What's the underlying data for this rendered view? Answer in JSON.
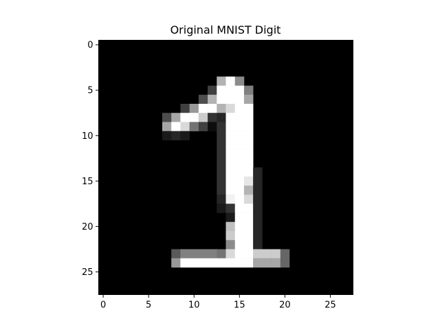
{
  "chart_data": {
    "type": "heatmap",
    "title": "Original MNIST Digit",
    "xlabel": "",
    "ylabel": "",
    "colormap": "gray",
    "rows": 28,
    "cols": 28,
    "xlim": [
      -0.5,
      27.5
    ],
    "ylim": [
      27.5,
      -0.5
    ],
    "xticks": [
      0,
      5,
      10,
      15,
      20,
      25
    ],
    "yticks": [
      0,
      5,
      10,
      15,
      20,
      25
    ],
    "grid": false,
    "vmin": 0,
    "vmax": 1,
    "pixels": [
      [
        4,
        13,
        0.7
      ],
      [
        4,
        14,
        1.0
      ],
      [
        4,
        15,
        0.55
      ],
      [
        5,
        12,
        0.25
      ],
      [
        5,
        13,
        1.0
      ],
      [
        5,
        14,
        1.0
      ],
      [
        5,
        15,
        1.0
      ],
      [
        5,
        16,
        0.5
      ],
      [
        6,
        11,
        0.3
      ],
      [
        6,
        12,
        0.7
      ],
      [
        6,
        13,
        1.0
      ],
      [
        6,
        14,
        1.0
      ],
      [
        6,
        15,
        1.0
      ],
      [
        6,
        16,
        0.65
      ],
      [
        7,
        9,
        0.25
      ],
      [
        7,
        10,
        0.6
      ],
      [
        7,
        11,
        1.0
      ],
      [
        7,
        12,
        1.0
      ],
      [
        7,
        13,
        0.7
      ],
      [
        7,
        14,
        0.85
      ],
      [
        7,
        15,
        1.0
      ],
      [
        7,
        16,
        1.0
      ],
      [
        8,
        7,
        0.3
      ],
      [
        8,
        8,
        0.65
      ],
      [
        8,
        9,
        1.0
      ],
      [
        8,
        10,
        1.0
      ],
      [
        8,
        11,
        0.8
      ],
      [
        8,
        12,
        0.2
      ],
      [
        8,
        13,
        0.15
      ],
      [
        8,
        14,
        1.0
      ],
      [
        8,
        15,
        1.0
      ],
      [
        8,
        16,
        1.0
      ],
      [
        9,
        7,
        0.65
      ],
      [
        9,
        8,
        1.0
      ],
      [
        9,
        9,
        0.85
      ],
      [
        9,
        10,
        0.45
      ],
      [
        9,
        11,
        0.25
      ],
      [
        9,
        12,
        0.05
      ],
      [
        9,
        13,
        0.2
      ],
      [
        9,
        14,
        1.0
      ],
      [
        9,
        15,
        1.0
      ],
      [
        9,
        16,
        1.0
      ],
      [
        10,
        7,
        0.1
      ],
      [
        10,
        8,
        0.15
      ],
      [
        10,
        9,
        0.1
      ],
      [
        10,
        13,
        0.2
      ],
      [
        10,
        14,
        1.0
      ],
      [
        10,
        15,
        1.0
      ],
      [
        10,
        16,
        1.0
      ],
      [
        11,
        13,
        0.2
      ],
      [
        11,
        14,
        1.0
      ],
      [
        11,
        15,
        1.0
      ],
      [
        11,
        16,
        1.0
      ],
      [
        12,
        13,
        0.2
      ],
      [
        12,
        14,
        1.0
      ],
      [
        12,
        15,
        1.0
      ],
      [
        12,
        16,
        1.0
      ],
      [
        13,
        13,
        0.2
      ],
      [
        13,
        14,
        1.0
      ],
      [
        13,
        15,
        1.0
      ],
      [
        13,
        16,
        1.0
      ],
      [
        14,
        13,
        0.2
      ],
      [
        14,
        14,
        1.0
      ],
      [
        14,
        15,
        1.0
      ],
      [
        14,
        16,
        1.0
      ],
      [
        14,
        17,
        0.15
      ],
      [
        15,
        13,
        0.2
      ],
      [
        15,
        14,
        1.0
      ],
      [
        15,
        15,
        1.0
      ],
      [
        15,
        16,
        0.9
      ],
      [
        15,
        17,
        0.15
      ],
      [
        16,
        13,
        0.2
      ],
      [
        16,
        14,
        1.0
      ],
      [
        16,
        15,
        1.0
      ],
      [
        16,
        16,
        0.7
      ],
      [
        16,
        17,
        0.15
      ],
      [
        17,
        13,
        0.15
      ],
      [
        17,
        14,
        0.95
      ],
      [
        17,
        15,
        1.0
      ],
      [
        17,
        16,
        0.85
      ],
      [
        17,
        17,
        0.15
      ],
      [
        18,
        13,
        0.1
      ],
      [
        18,
        14,
        0.2
      ],
      [
        18,
        15,
        1.0
      ],
      [
        18,
        16,
        1.0
      ],
      [
        18,
        17,
        0.15
      ],
      [
        19,
        14,
        0.1
      ],
      [
        19,
        15,
        1.0
      ],
      [
        19,
        16,
        1.0
      ],
      [
        19,
        17,
        0.15
      ],
      [
        20,
        14,
        0.75
      ],
      [
        20,
        15,
        1.0
      ],
      [
        20,
        16,
        1.0
      ],
      [
        20,
        17,
        0.15
      ],
      [
        21,
        14,
        0.8
      ],
      [
        21,
        15,
        1.0
      ],
      [
        21,
        16,
        1.0
      ],
      [
        21,
        17,
        0.15
      ],
      [
        22,
        14,
        0.55
      ],
      [
        22,
        15,
        1.0
      ],
      [
        22,
        16,
        1.0
      ],
      [
        22,
        17,
        0.15
      ],
      [
        23,
        8,
        0.35
      ],
      [
        23,
        9,
        0.5
      ],
      [
        23,
        10,
        0.5
      ],
      [
        23,
        11,
        0.5
      ],
      [
        23,
        12,
        0.5
      ],
      [
        23,
        13,
        0.45
      ],
      [
        23,
        14,
        0.85
      ],
      [
        23,
        15,
        1.0
      ],
      [
        23,
        16,
        1.0
      ],
      [
        23,
        17,
        0.8
      ],
      [
        23,
        18,
        0.8
      ],
      [
        23,
        19,
        0.8
      ],
      [
        23,
        20,
        0.4
      ],
      [
        24,
        8,
        0.6
      ],
      [
        24,
        9,
        1.0
      ],
      [
        24,
        10,
        1.0
      ],
      [
        24,
        11,
        1.0
      ],
      [
        24,
        12,
        1.0
      ],
      [
        24,
        13,
        1.0
      ],
      [
        24,
        14,
        1.0
      ],
      [
        24,
        15,
        1.0
      ],
      [
        24,
        16,
        1.0
      ],
      [
        24,
        17,
        0.65
      ],
      [
        24,
        18,
        0.65
      ],
      [
        24,
        19,
        0.65
      ],
      [
        24,
        20,
        0.4
      ]
    ]
  }
}
